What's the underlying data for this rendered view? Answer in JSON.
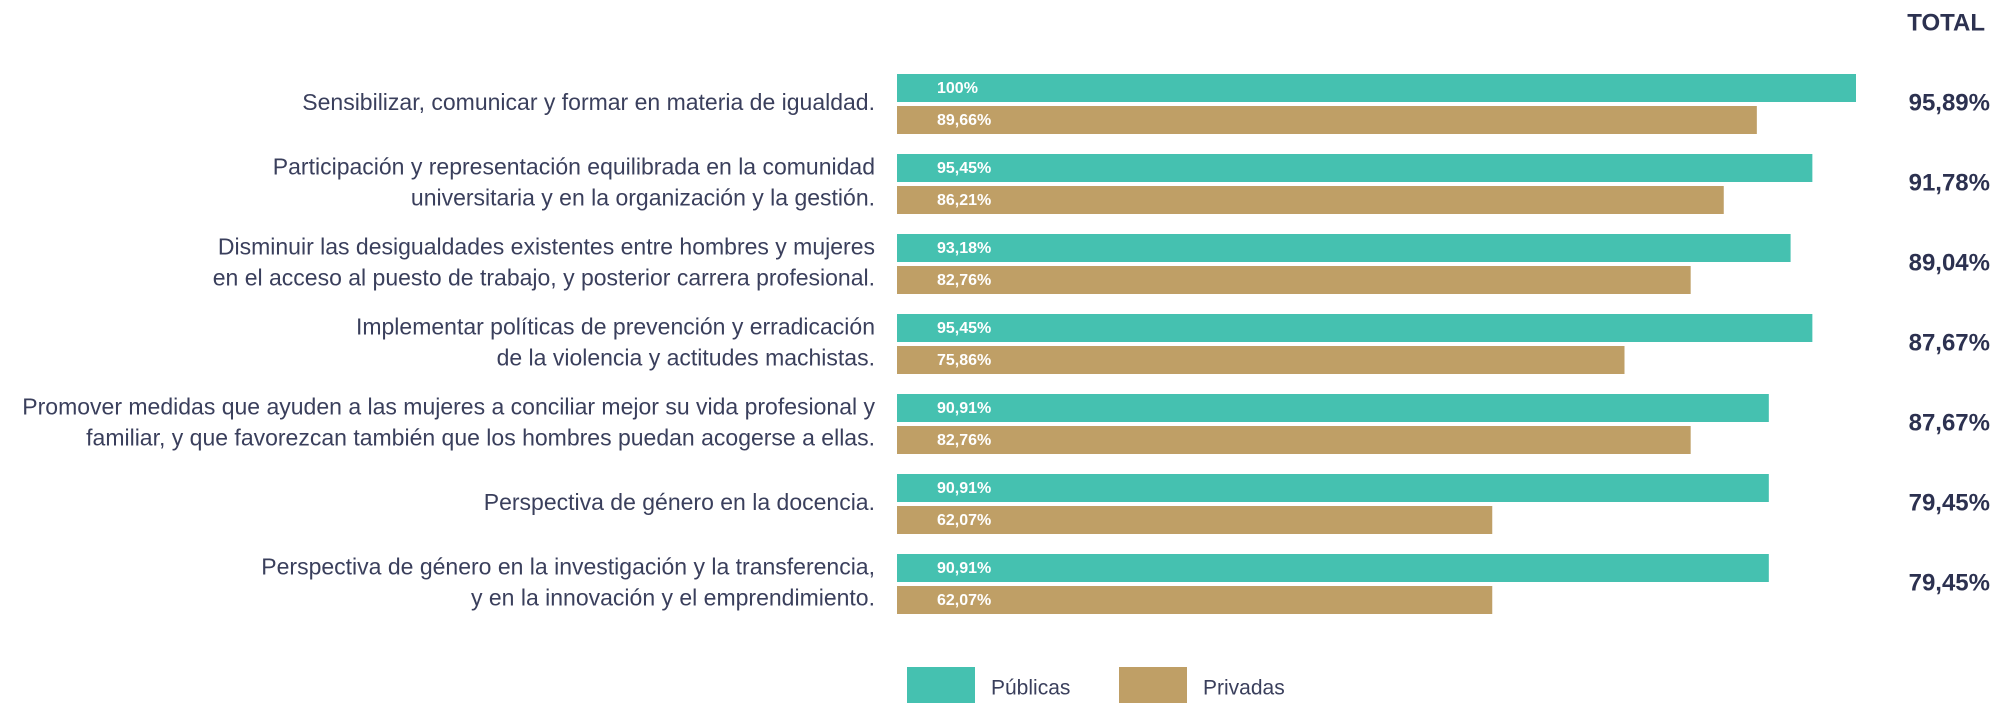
{
  "chart_data": {
    "type": "bar",
    "orientation": "horizontal",
    "categories": [
      [
        "Sensibilizar, comunicar y formar en materia de igualdad."
      ],
      [
        "Participación y representación equilibrada en la comunidad",
        "universitaria y en la organización y la gestión."
      ],
      [
        "Disminuir las desigualdades existentes entre hombres y mujeres",
        "en el acceso al puesto de trabajo, y posterior carrera profesional."
      ],
      [
        "Implementar políticas de prevención y erradicación",
        "de la violencia y actitudes machistas."
      ],
      [
        "Promover medidas que ayuden a las mujeres a conciliar mejor su vida profesional y",
        "familiar, y que favorezcan también que los hombres puedan acogerse a ellas."
      ],
      [
        "Perspectiva de género en la docencia."
      ],
      [
        "Perspectiva de género en la investigación y la transferencia,",
        "y en la innovación y el emprendimiento."
      ]
    ],
    "series": [
      {
        "name": "Públicas",
        "color": "#45c1b0",
        "values": [
          100,
          95.45,
          93.18,
          95.45,
          90.91,
          90.91,
          90.91
        ],
        "value_labels": [
          "100%",
          "95,45%",
          "93,18%",
          "95,45%",
          "90,91%",
          "90,91%",
          "90,91%"
        ]
      },
      {
        "name": "Privadas",
        "color": "#bf9f66",
        "values": [
          89.66,
          86.21,
          82.76,
          75.86,
          82.76,
          62.07,
          62.07
        ],
        "value_labels": [
          "89,66%",
          "86,21%",
          "82,76%",
          "75,86%",
          "82,76%",
          "62,07%",
          "62,07%"
        ]
      }
    ],
    "totals": {
      "title": "TOTAL",
      "values": [
        95.89,
        91.78,
        89.04,
        87.67,
        87.67,
        79.45,
        79.45
      ],
      "value_labels": [
        "95,89%",
        "91,78%",
        "89,04%",
        "87,67%",
        "87,67%",
        "79,45%",
        "79,45%"
      ]
    },
    "xlim": [
      0,
      100
    ]
  }
}
